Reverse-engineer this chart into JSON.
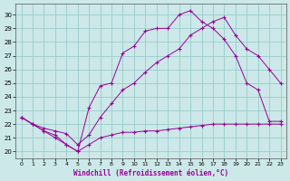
{
  "xlabel": "Windchill (Refroidissement éolien,°C)",
  "bg_color": "#cce8e8",
  "grid_color": "#99cccc",
  "line_color": "#990099",
  "x_ticks": [
    0,
    1,
    2,
    3,
    4,
    5,
    6,
    7,
    8,
    9,
    10,
    11,
    12,
    13,
    14,
    15,
    16,
    17,
    18,
    19,
    20,
    21,
    22,
    23
  ],
  "y_ticks": [
    20,
    21,
    22,
    23,
    24,
    25,
    26,
    27,
    28,
    29,
    30
  ],
  "ylim": [
    19.5,
    30.8
  ],
  "xlim": [
    -0.5,
    23.5
  ],
  "line1_x": [
    0,
    1,
    2,
    3,
    4,
    5,
    6,
    7,
    8,
    9,
    10,
    11,
    12,
    13,
    14,
    15,
    16,
    17,
    18,
    19,
    20,
    21,
    22,
    23
  ],
  "line1_y": [
    22.5,
    22.0,
    21.5,
    21.0,
    20.5,
    20.0,
    23.2,
    24.8,
    25.0,
    27.2,
    27.7,
    28.8,
    29.0,
    29.0,
    30.0,
    30.3,
    29.5,
    29.0,
    28.2,
    27.0,
    25.0,
    24.5,
    22.2,
    22.2
  ],
  "line2_x": [
    0,
    1,
    2,
    3,
    4,
    5,
    6,
    7,
    8,
    9,
    10,
    11,
    12,
    13,
    14,
    15,
    16,
    17,
    18,
    19,
    20,
    21,
    22,
    23
  ],
  "line2_y": [
    22.5,
    22.0,
    21.7,
    21.5,
    21.3,
    20.5,
    21.2,
    22.5,
    23.5,
    24.5,
    25.0,
    25.8,
    26.5,
    27.0,
    27.5,
    28.5,
    29.0,
    29.5,
    29.8,
    28.5,
    27.5,
    27.0,
    26.0,
    25.0
  ],
  "line3_x": [
    0,
    1,
    2,
    3,
    4,
    5,
    6,
    7,
    8,
    9,
    10,
    11,
    12,
    13,
    14,
    15,
    16,
    17,
    18,
    19,
    20,
    21,
    22,
    23
  ],
  "line3_y": [
    22.5,
    22.0,
    21.5,
    21.2,
    20.5,
    20.0,
    20.5,
    21.0,
    21.2,
    21.4,
    21.4,
    21.5,
    21.5,
    21.6,
    21.7,
    21.8,
    21.9,
    22.0,
    22.0,
    22.0,
    22.0,
    22.0,
    22.0,
    22.0
  ]
}
